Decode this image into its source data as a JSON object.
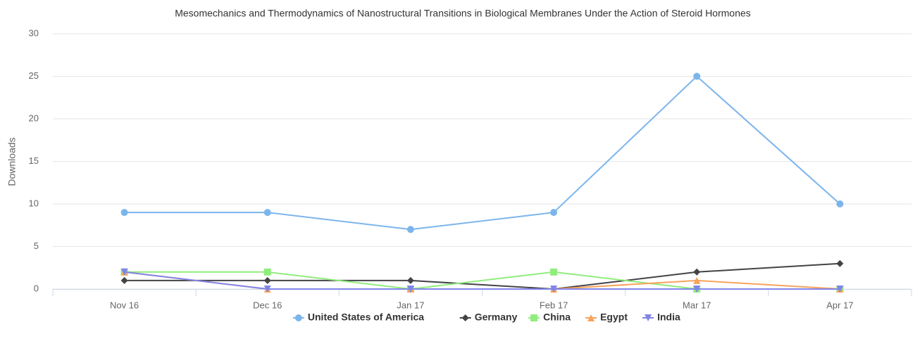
{
  "chart_data": {
    "type": "line",
    "title": "Mesomechanics and Thermodynamics of Nanostructural Transitions in Biological Membranes Under the Action of Steroid Hormones",
    "y_label": "Downloads",
    "categories": [
      "Nov 16",
      "Dec 16",
      "Jan 17",
      "Feb 17",
      "Mar 17",
      "Apr 17"
    ],
    "series": [
      {
        "name": "United States of America",
        "color": "#7cb5ec",
        "values": [
          9,
          9,
          7,
          9,
          25,
          10
        ]
      },
      {
        "name": "Germany",
        "color": "#434348",
        "values": [
          1,
          1,
          1,
          0,
          2,
          3
        ]
      },
      {
        "name": "China",
        "color": "#90ed7d",
        "values": [
          2,
          2,
          0,
          2,
          0,
          0
        ]
      },
      {
        "name": "Egypt",
        "color": "#f7a35c",
        "values": [
          2,
          0,
          0,
          0,
          1,
          0
        ]
      },
      {
        "name": "India",
        "color": "#8085e9",
        "values": [
          2,
          0,
          0,
          0,
          0,
          0
        ]
      }
    ],
    "ylim": [
      0,
      30
    ],
    "yticks": [
      0,
      5,
      10,
      15,
      20,
      25,
      30
    ],
    "grid": true,
    "legend": "bottom"
  }
}
